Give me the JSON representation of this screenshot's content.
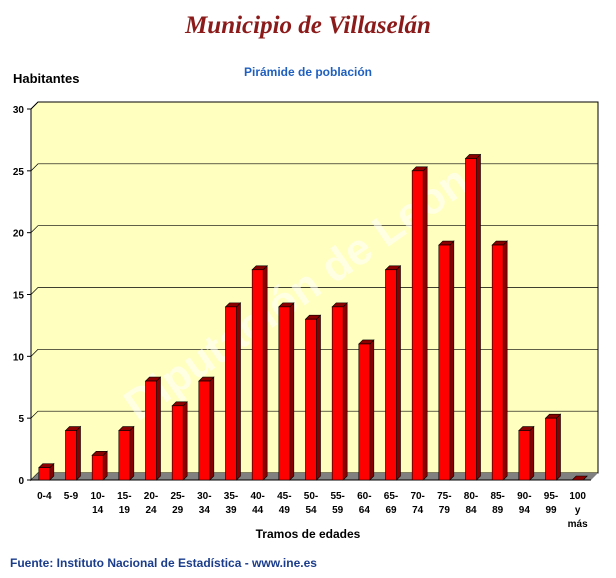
{
  "chart_data": {
    "type": "bar",
    "title": "Municipio de Villaselán",
    "subtitle": "Pirámide de población",
    "ylabel": "Habitantes",
    "xlabel": "Tramos de edades",
    "categories": [
      "0-4",
      "5-9",
      "10-14",
      "15-19",
      "20-24",
      "25-29",
      "30-34",
      "35-39",
      "40-44",
      "45-49",
      "50-54",
      "55-59",
      "60-64",
      "65-69",
      "70-74",
      "75-79",
      "80-84",
      "85-89",
      "90-94",
      "95-99",
      "100 y más"
    ],
    "category_lines": [
      [
        "0-4"
      ],
      [
        "5-9"
      ],
      [
        "10-",
        "14"
      ],
      [
        "15-",
        "19"
      ],
      [
        "20-",
        "24"
      ],
      [
        "25-",
        "29"
      ],
      [
        "30-",
        "34"
      ],
      [
        "35-",
        "39"
      ],
      [
        "40-",
        "44"
      ],
      [
        "45-",
        "49"
      ],
      [
        "50-",
        "54"
      ],
      [
        "55-",
        "59"
      ],
      [
        "60-",
        "64"
      ],
      [
        "65-",
        "69"
      ],
      [
        "70-",
        "74"
      ],
      [
        "75-",
        "79"
      ],
      [
        "80-",
        "84"
      ],
      [
        "85-",
        "89"
      ],
      [
        "90-",
        "94"
      ],
      [
        "95-",
        "99"
      ],
      [
        "100",
        "y",
        "más"
      ]
    ],
    "values": [
      1,
      4,
      2,
      4,
      8,
      6,
      8,
      14,
      17,
      14,
      13,
      14,
      11,
      17,
      25,
      19,
      26,
      19,
      4,
      5,
      0
    ],
    "ylim": [
      0,
      30
    ],
    "yticks": [
      0,
      5,
      10,
      15,
      20,
      25,
      30
    ],
    "grid": true,
    "colors": {
      "bar": "#ff0000",
      "bar_side": "#8b0000",
      "plot_bg": "#ffffc0",
      "floor": "#808080"
    }
  },
  "watermark": "Diputación de León",
  "footer": {
    "source": "Fuente: Instituto Nacional de Estadística - www.ine.es"
  }
}
